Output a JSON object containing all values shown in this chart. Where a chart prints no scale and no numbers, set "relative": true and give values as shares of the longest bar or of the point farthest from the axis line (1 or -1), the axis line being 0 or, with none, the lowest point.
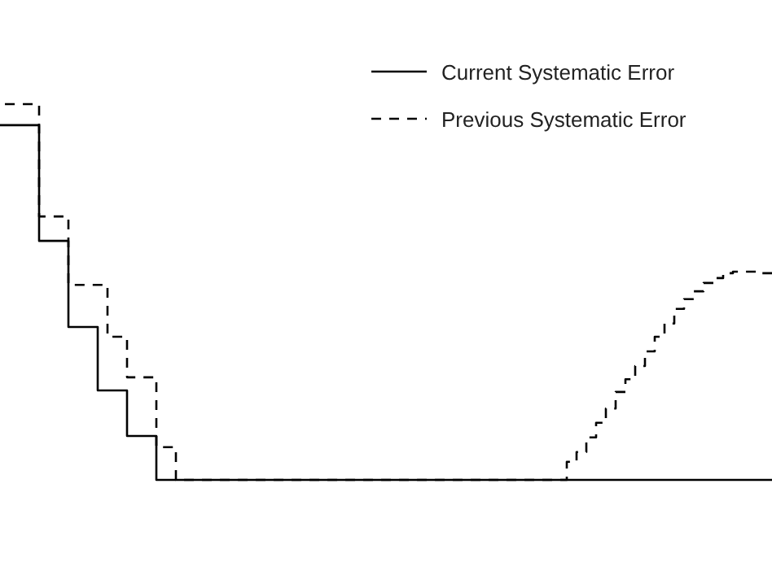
{
  "chart_data": {
    "type": "step",
    "relative": true,
    "legend": "top right",
    "categories": [
      null,
      null,
      null,
      null,
      null,
      null,
      null,
      null,
      null,
      null,
      null,
      null,
      null,
      null,
      null,
      null,
      null,
      null,
      null,
      null,
      null,
      null,
      null,
      null,
      null,
      null,
      null,
      null,
      null,
      null,
      null,
      null,
      null,
      null,
      null,
      null,
      null,
      null,
      null,
      null,
      null,
      null,
      null,
      null,
      null,
      null,
      null,
      null,
      null,
      null,
      null,
      null,
      null,
      null,
      null,
      null,
      null,
      null,
      null,
      null,
      null,
      null,
      null,
      null,
      null,
      null,
      null,
      null,
      null,
      null,
      null,
      null,
      null,
      null,
      null,
      null,
      null,
      null,
      null,
      null
    ],
    "series": [
      {
        "name": "Current Systematic Error",
        "color": "#000000",
        "line_style": "solid",
        "values": [
          0.944,
          0.944,
          0.944,
          0.944,
          0.636,
          0.636,
          0.636,
          0.407,
          0.407,
          0.407,
          0.238,
          0.238,
          0.238,
          0.117,
          0.117,
          0.117,
          0,
          0,
          0,
          0,
          0,
          0,
          0,
          0,
          0,
          0,
          0,
          0,
          0,
          0,
          0,
          0,
          0,
          0,
          0,
          0,
          0,
          0,
          0,
          0,
          0,
          0,
          0,
          0,
          0,
          0,
          0,
          0,
          0,
          0,
          0,
          0,
          0,
          0,
          0,
          0,
          0,
          0,
          0,
          0,
          0,
          0,
          0,
          0,
          0,
          0,
          0,
          0,
          0,
          0,
          0,
          0,
          0,
          0,
          0,
          0,
          0,
          0,
          0,
          0
        ]
      },
      {
        "name": "Previous Systematic Error",
        "color": "#000000",
        "line_style": "dashed",
        "values": [
          1,
          1,
          1,
          1,
          0.701,
          0.701,
          0.701,
          0.519,
          0.519,
          0.519,
          0.519,
          0.381,
          0.381,
          0.273,
          0.273,
          0.273,
          0.087,
          0.087,
          0,
          0,
          0,
          0,
          0,
          0,
          0,
          0,
          0,
          0,
          0,
          0,
          0,
          0,
          0,
          0,
          0,
          0,
          0,
          0,
          0,
          0,
          0,
          0,
          0,
          0,
          0,
          0,
          0,
          0,
          0,
          0,
          0,
          0,
          0,
          0,
          0,
          0,
          0,
          0,
          0.048,
          0.074,
          0.113,
          0.152,
          0.19,
          0.234,
          0.268,
          0.303,
          0.342,
          0.381,
          0.416,
          0.455,
          0.481,
          0.502,
          0.524,
          0.537,
          0.55,
          0.554,
          0.554,
          0.554,
          0.55,
          0.541
        ]
      }
    ]
  }
}
